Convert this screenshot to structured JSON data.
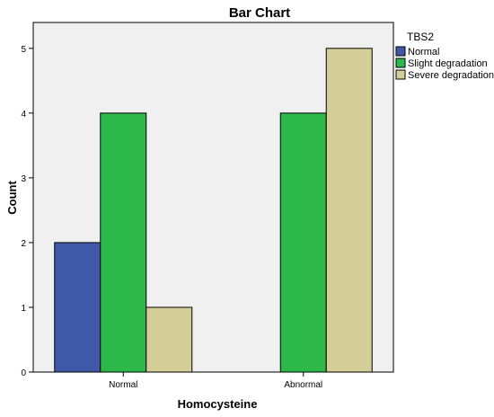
{
  "chart_data": {
    "type": "bar",
    "title": "Bar Chart",
    "xlabel": "Homocysteine",
    "ylabel": "Count",
    "categories": [
      "Normal",
      "Abnormal"
    ],
    "series": [
      {
        "name": "Normal",
        "values": [
          2,
          0
        ],
        "color": "#3f59a8"
      },
      {
        "name": "Slight degradation",
        "values": [
          4,
          4
        ],
        "color": "#2db84a"
      },
      {
        "name": "Severe degradation",
        "values": [
          1,
          5
        ],
        "color": "#d4ce98"
      }
    ],
    "ylim": [
      0,
      5.4
    ],
    "yticks": [
      0,
      1,
      2,
      3,
      4,
      5
    ],
    "legend_title": "TBS2",
    "legend_position": "top-right",
    "grid": false,
    "plot_background": "#f0f0f0"
  }
}
